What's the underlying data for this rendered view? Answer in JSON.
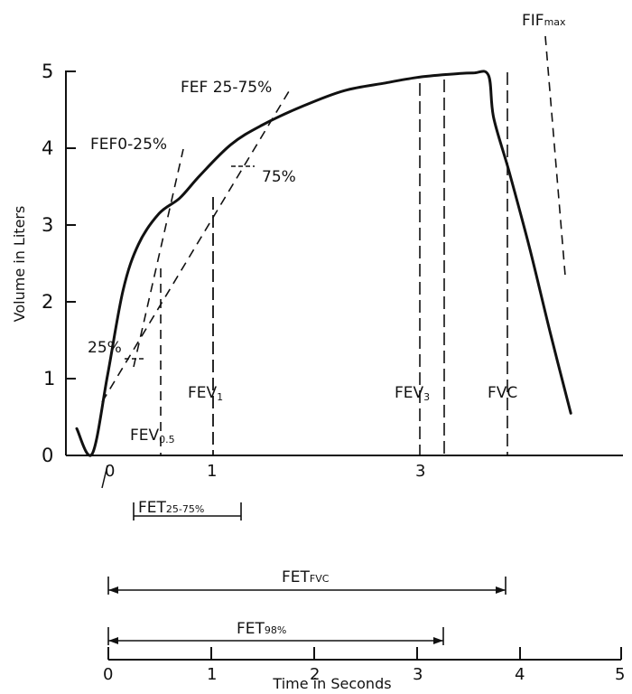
{
  "chart_data": {
    "type": "line",
    "title": "",
    "ylabel": "Volume in Liters",
    "xlabel": "Time in Seconds",
    "y_ticks": [
      "0",
      "1",
      "2",
      "3",
      "4",
      "5"
    ],
    "top_x_ticks": [
      "0",
      "1",
      "3"
    ],
    "bottom_x_ticks": [
      "0",
      "1",
      "2",
      "3",
      "4",
      "5"
    ],
    "ylim": [
      0,
      5
    ],
    "xlim": [
      0,
      5
    ],
    "series": [
      {
        "x": [
          0.0,
          0.15,
          0.3,
          0.45,
          0.6,
          0.8,
          1.0,
          1.2,
          1.5,
          1.8,
          2.2,
          2.6,
          3.0,
          3.3,
          3.6,
          3.85,
          4.0,
          4.05,
          4.2,
          4.4,
          4.6,
          4.8
        ],
        "y": [
          0.35,
          0.02,
          1.05,
          2.15,
          2.75,
          3.15,
          3.35,
          3.65,
          4.05,
          4.3,
          4.55,
          4.75,
          4.85,
          4.92,
          4.96,
          4.98,
          4.95,
          4.4,
          3.7,
          2.7,
          1.6,
          0.55
        ]
      }
    ],
    "annotations": {
      "fif_max": "FIF",
      "fif_max_sub": "max",
      "fef2575": "FEF 25-75%",
      "fef025": "FEF0-25%",
      "pct75": "75%",
      "pct25": "25%",
      "fev1": "FEV",
      "fev1_sub": "1",
      "fev05": "FEV",
      "fev05_sub": "0.5",
      "fev3": "FEV",
      "fev3_sub": "3",
      "fvc": "FVC",
      "fet2575": "FET",
      "fet2575_sub": "25-75%",
      "fetfvc": "FET",
      "fetfvc_sub": "FVC",
      "fet98": "FET",
      "fet98_sub": "98%"
    }
  }
}
